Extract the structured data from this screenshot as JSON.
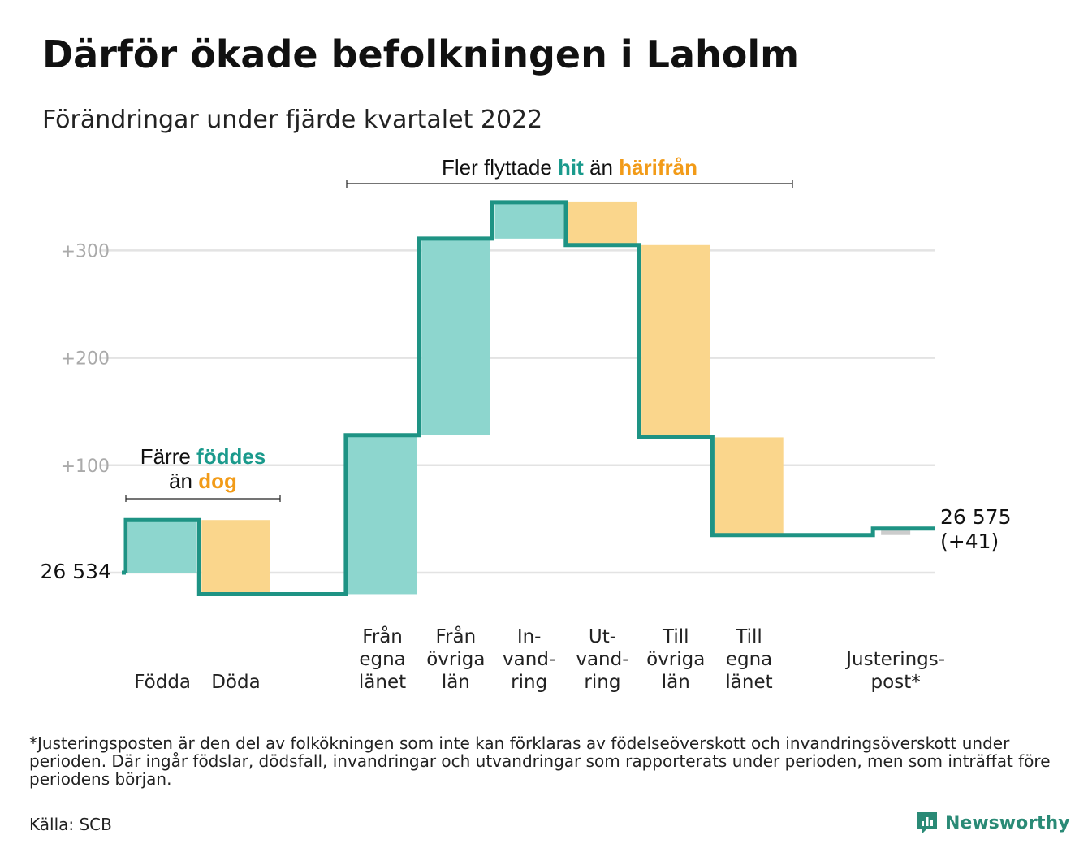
{
  "title": "Därför ökade befolkningen i Laholm",
  "subtitle": "Förändringar under fjärde kvartalet 2022",
  "colors": {
    "increase": "#8dd6ce",
    "decrease": "#fad68c",
    "adjustment": "#cccccc",
    "line": "#1e9384",
    "grid": "#e3e3e3",
    "highlight_in": "#1a9a8c",
    "highlight_out": "#f29b18"
  },
  "annotations": {
    "birth": {
      "line1_pre": "Färre ",
      "line1_hl": "föddes",
      "line2_pre": "än ",
      "line2_hl": "dog"
    },
    "migration": {
      "pre": "Fler flyttade ",
      "hl1": "hit",
      "mid": " än ",
      "hl2": "härifrån"
    }
  },
  "chart_data": {
    "type": "waterfall",
    "title": "Därför ökade befolkningen i Laholm",
    "subtitle": "Förändringar under fjärde kvartalet 2022",
    "baseline": 26534,
    "start_label": "26 534",
    "end_label": "26 575",
    "end_change_label": "(+41)",
    "y_ticks": [
      {
        "value": 100,
        "label": "+100"
      },
      {
        "value": 200,
        "label": "+200"
      },
      {
        "value": 300,
        "label": "+300"
      }
    ],
    "ylim": [
      -35,
      350
    ],
    "grid": true,
    "steps": [
      {
        "label": [
          "",
          "",
          "Födda"
        ],
        "delta": 49,
        "kind": "increase"
      },
      {
        "label": [
          "",
          "",
          "Döda"
        ],
        "delta": -69,
        "kind": "decrease"
      },
      {
        "label": [],
        "delta": 0,
        "kind": "spacer"
      },
      {
        "label": [
          "Från",
          "egna",
          "länet"
        ],
        "delta": 148,
        "kind": "increase"
      },
      {
        "label": [
          "Från",
          "övriga",
          "län"
        ],
        "delta": 183,
        "kind": "increase"
      },
      {
        "label": [
          "In-",
          "vand-",
          "ring"
        ],
        "delta": 34,
        "kind": "increase"
      },
      {
        "label": [
          "Ut-",
          "vand-",
          "ring"
        ],
        "delta": -40,
        "kind": "decrease"
      },
      {
        "label": [
          "Till",
          "övriga",
          "län"
        ],
        "delta": -179,
        "kind": "decrease"
      },
      {
        "label": [
          "Till",
          "egna",
          "länet"
        ],
        "delta": -91,
        "kind": "decrease"
      },
      {
        "label": [],
        "delta": 0,
        "kind": "spacer"
      },
      {
        "label": [
          "Justerings-",
          "post*"
        ],
        "delta": 6,
        "kind": "adjustment"
      }
    ]
  },
  "footnote": "*Justeringsposten är den del av folkökningen som inte kan förklaras av födelseöverskott och invandringsöverskott under perioden. Där ingår födslar, dödsfall, invandringar och utvandringar som rapporterats under perioden, men som inträffat före periodens början.",
  "source": "Källa: SCB",
  "brand": {
    "name": "Newsworthy",
    "icon": "newsworthy-logo-icon"
  }
}
